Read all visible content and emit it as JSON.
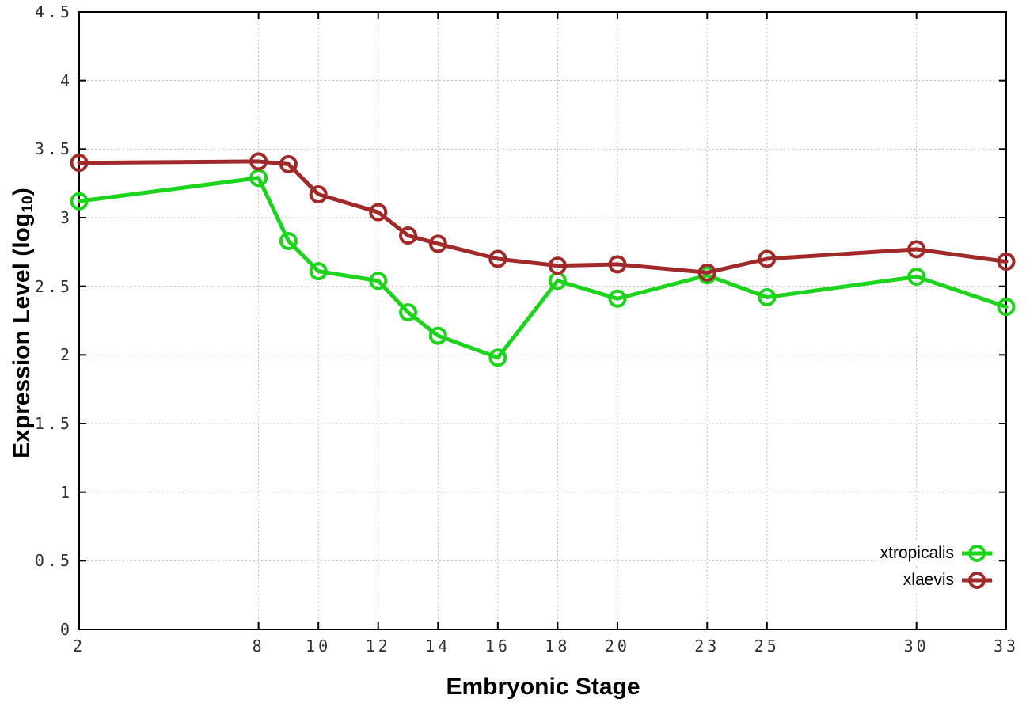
{
  "chart_data": {
    "type": "line",
    "title": "",
    "xlabel": "Embryonic Stage",
    "ylabel": "Expression Level (log10)",
    "ylabel_parts": {
      "prefix": "Expression Level (log",
      "subscript": "10",
      "suffix": ")"
    },
    "x": [
      2,
      8,
      9,
      10,
      12,
      13,
      14,
      16,
      18,
      20,
      23,
      25,
      30,
      33
    ],
    "series": [
      {
        "name": "xtropicalis",
        "color": "#1dd31d",
        "marker": "open-circle",
        "values": [
          3.12,
          3.29,
          2.83,
          2.61,
          2.54,
          2.31,
          2.14,
          1.98,
          2.54,
          2.41,
          2.58,
          2.42,
          2.57,
          2.35
        ]
      },
      {
        "name": "xlaevis",
        "color": "#a02a2a",
        "marker": "open-circle",
        "values": [
          3.4,
          3.41,
          3.39,
          3.17,
          3.04,
          2.87,
          2.81,
          2.7,
          2.65,
          2.66,
          2.6,
          2.7,
          2.77,
          2.68
        ]
      }
    ],
    "x_ticks": [
      2,
      8,
      10,
      12,
      14,
      16,
      18,
      20,
      23,
      25,
      30,
      33
    ],
    "x_tick_labels": [
      "2",
      "8",
      "10",
      "12",
      "14",
      "16",
      "18",
      "20",
      "23",
      "25",
      "30",
      "33"
    ],
    "y_ticks": [
      0,
      0.5,
      1,
      1.5,
      2,
      2.5,
      3,
      3.5,
      4,
      4.5
    ],
    "y_tick_labels": [
      "0",
      "0.5",
      "1",
      "1.5",
      "2",
      "2.5",
      "3",
      "3.5",
      "4",
      "4.5"
    ],
    "xlim": [
      2,
      33
    ],
    "ylim": [
      0,
      4.5
    ],
    "grid": true,
    "grid_style": "dotted",
    "legend_position": "inside-bottom-right",
    "colors": {
      "grid": "#bbbbbb",
      "axis": "#000000",
      "tick_text": "#303030",
      "background": "#ffffff"
    }
  }
}
